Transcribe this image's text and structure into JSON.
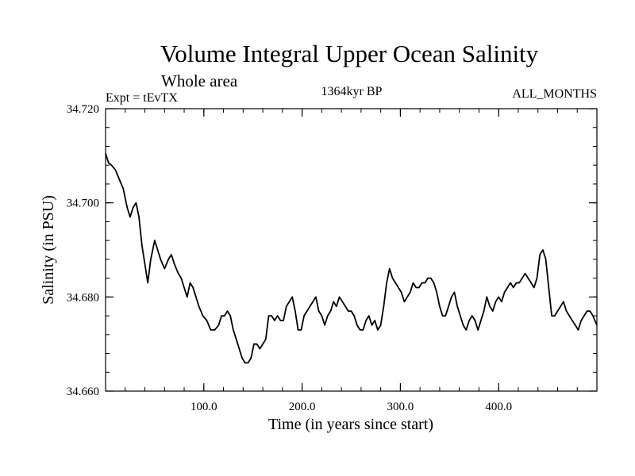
{
  "header": {
    "title": "Volume Integral Upper Ocean Salinity",
    "subtitle": "Whole area",
    "experiment": "Expt = tEvTX",
    "period": "1364kyr BP",
    "months": "ALL_MONTHS"
  },
  "chart_data": {
    "type": "line",
    "title": "Volume Integral Upper Ocean Salinity",
    "xlabel": "Time (in years since start)",
    "ylabel": "Salinity (in PSU)",
    "xlim": [
      0,
      500
    ],
    "ylim": [
      34.66,
      34.72
    ],
    "x_major_ticks": [
      100,
      200,
      300,
      400
    ],
    "x_tick_labels": [
      "100.0",
      "200.0",
      "300.0",
      "400.0"
    ],
    "x_minor_step": 20,
    "y_major_ticks": [
      34.66,
      34.68,
      34.7,
      34.72
    ],
    "y_tick_labels": [
      "34.660",
      "34.680",
      "34.700",
      "34.720"
    ],
    "y_minor_step": 0.004,
    "grid": false,
    "series": [
      {
        "name": "Salinity",
        "color": "#000000",
        "x": [
          0,
          3,
          6,
          10,
          14,
          18,
          22,
          25,
          28,
          31,
          34,
          37,
          40,
          43,
          46,
          50,
          53,
          56,
          60,
          64,
          67,
          70,
          74,
          77,
          80,
          83,
          86,
          89,
          92,
          95,
          99,
          103,
          107,
          111,
          115,
          118,
          121,
          124,
          127,
          130,
          133,
          136,
          139,
          142,
          145,
          148,
          151,
          154,
          157,
          160,
          163,
          166,
          169,
          172,
          175,
          178,
          181,
          184,
          187,
          190,
          193,
          196,
          199,
          202,
          205,
          208,
          211,
          214,
          217,
          220,
          223,
          226,
          229,
          232,
          235,
          238,
          241,
          244,
          247,
          250,
          253,
          256,
          259,
          262,
          265,
          268,
          271,
          274,
          277,
          280,
          283,
          286,
          289,
          292,
          295,
          298,
          301,
          304,
          307,
          310,
          313,
          316,
          319,
          322,
          325,
          328,
          331,
          334,
          337,
          340,
          343,
          346,
          349,
          352,
          355,
          358,
          361,
          364,
          367,
          370,
          373,
          376,
          379,
          382,
          385,
          388,
          391,
          394,
          397,
          400,
          403,
          406,
          409,
          412,
          415,
          418,
          421,
          424,
          427,
          430,
          433,
          436,
          439,
          442,
          445,
          448,
          451,
          454,
          457,
          460,
          463,
          466,
          469,
          472,
          475,
          478,
          481,
          484,
          487,
          490,
          493,
          496,
          500
        ],
        "values": [
          34.7105,
          34.7085,
          34.708,
          34.707,
          34.705,
          34.703,
          34.699,
          34.697,
          34.699,
          34.7,
          34.697,
          34.691,
          34.687,
          34.683,
          34.688,
          34.692,
          34.69,
          34.688,
          34.686,
          34.688,
          34.689,
          34.687,
          34.685,
          34.684,
          34.682,
          34.68,
          34.683,
          34.682,
          34.68,
          34.678,
          34.676,
          34.675,
          34.673,
          34.673,
          34.674,
          34.676,
          34.676,
          34.677,
          34.676,
          34.673,
          34.671,
          34.669,
          34.667,
          34.666,
          34.666,
          34.667,
          34.67,
          34.67,
          34.669,
          34.67,
          34.671,
          34.676,
          34.676,
          34.675,
          34.676,
          34.675,
          34.675,
          34.678,
          34.679,
          34.68,
          34.677,
          34.673,
          34.673,
          34.676,
          34.677,
          34.678,
          34.679,
          34.68,
          34.677,
          34.676,
          34.674,
          34.676,
          34.677,
          34.679,
          34.678,
          34.68,
          34.679,
          34.678,
          34.677,
          34.677,
          34.676,
          34.674,
          34.673,
          34.673,
          34.675,
          34.676,
          34.674,
          34.675,
          34.673,
          34.674,
          34.678,
          34.683,
          34.686,
          34.684,
          34.683,
          34.682,
          34.681,
          34.679,
          34.68,
          34.681,
          34.683,
          34.682,
          34.682,
          34.683,
          34.683,
          34.684,
          34.684,
          34.683,
          34.681,
          34.678,
          34.676,
          34.676,
          34.678,
          34.68,
          34.681,
          34.678,
          34.676,
          34.674,
          34.673,
          34.675,
          34.676,
          34.675,
          34.673,
          34.675,
          34.677,
          34.68,
          34.678,
          34.677,
          34.679,
          34.68,
          34.679,
          34.681,
          34.682,
          34.683,
          34.682,
          34.683,
          34.683,
          34.684,
          34.685,
          34.684,
          34.683,
          34.682,
          34.684,
          34.689,
          34.69,
          34.688,
          34.682,
          34.676,
          34.676,
          34.677,
          34.678,
          34.679,
          34.677,
          34.676,
          34.675,
          34.674,
          34.673,
          34.675,
          34.676,
          34.677,
          34.677,
          34.676,
          34.674
        ]
      }
    ]
  }
}
